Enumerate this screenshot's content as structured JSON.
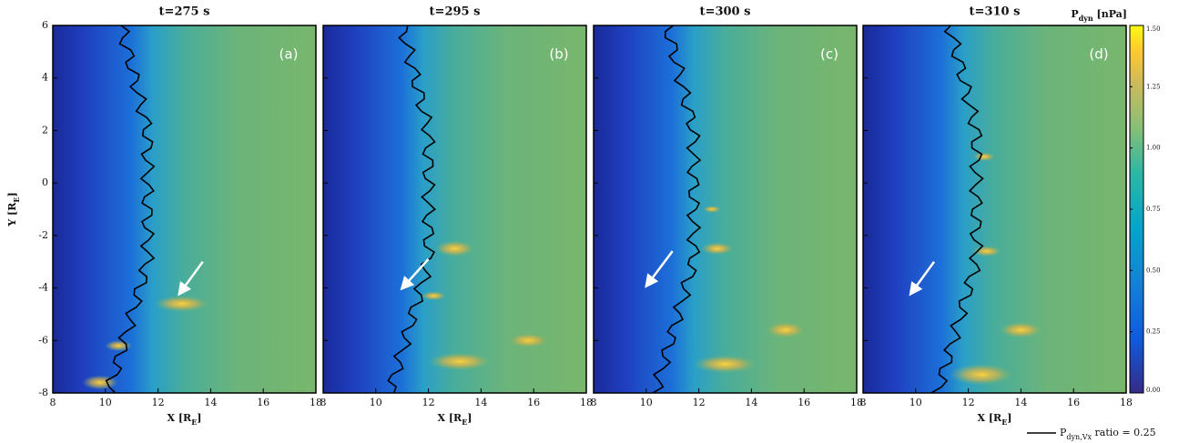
{
  "chart_data": [
    {
      "type": "heatmap",
      "title": "t=275 s",
      "panel_label": "(a)",
      "xlabel": [
        "X [R",
        "E",
        "]"
      ],
      "ylabel": [
        "Y [R",
        "E",
        "]"
      ],
      "show_ytick_labels": true,
      "xlim": [
        8,
        18
      ],
      "ylim": [
        -8,
        6
      ],
      "xticks": [
        8,
        10,
        12,
        14,
        16,
        18
      ],
      "yticks": [
        -8,
        -6,
        -4,
        -2,
        0,
        2,
        4,
        6
      ]
    },
    {
      "type": "heatmap",
      "title": "t=295 s",
      "panel_label": "(b)",
      "xlabel": [
        "X [R",
        "E",
        "]"
      ],
      "show_ytick_labels": false,
      "xlim": [
        8,
        18
      ],
      "ylim": [
        -8,
        6
      ],
      "xticks": [
        8,
        10,
        12,
        14,
        16,
        18
      ],
      "yticks": [
        -8,
        -6,
        -4,
        -2,
        0,
        2,
        4,
        6
      ]
    },
    {
      "type": "heatmap",
      "title": "t=300 s",
      "panel_label": "(c)",
      "show_ytick_labels": false,
      "xlim": [
        8,
        18
      ],
      "ylim": [
        -8,
        6
      ],
      "xticks": [
        8,
        10,
        12,
        14,
        16,
        18
      ],
      "yticks": [
        -8,
        -6,
        -4,
        -2,
        0,
        2,
        4,
        6
      ]
    },
    {
      "type": "heatmap",
      "title": "t=310 s",
      "panel_label": "(d)",
      "xlabel": [
        "X [R",
        "E",
        "]"
      ],
      "show_ytick_labels": false,
      "xlim": [
        8,
        18
      ],
      "ylim": [
        -8,
        6
      ],
      "xticks": [
        8,
        10,
        12,
        14,
        16,
        18
      ],
      "yticks": [
        -8,
        -6,
        -4,
        -2,
        0,
        2,
        4,
        6
      ]
    }
  ],
  "colorbar": {
    "label": [
      "P",
      "dyn",
      " [nPa]"
    ],
    "lim": [
      0,
      1.5
    ],
    "ticks": [
      {
        "value": 0,
        "label": "0.00"
      },
      {
        "value": 0.25,
        "label": "0.25"
      },
      {
        "value": 0.5,
        "label": "0.50"
      },
      {
        "value": 0.75,
        "label": "0.75"
      },
      {
        "value": 1,
        "label": "1.00"
      },
      {
        "value": 1.25,
        "label": "1.25"
      },
      {
        "value": 1.5,
        "label": "1.50"
      }
    ]
  },
  "contour_legend": [
    "P",
    "dyn,V",
    "x",
    " ratio = 0.25"
  ]
}
